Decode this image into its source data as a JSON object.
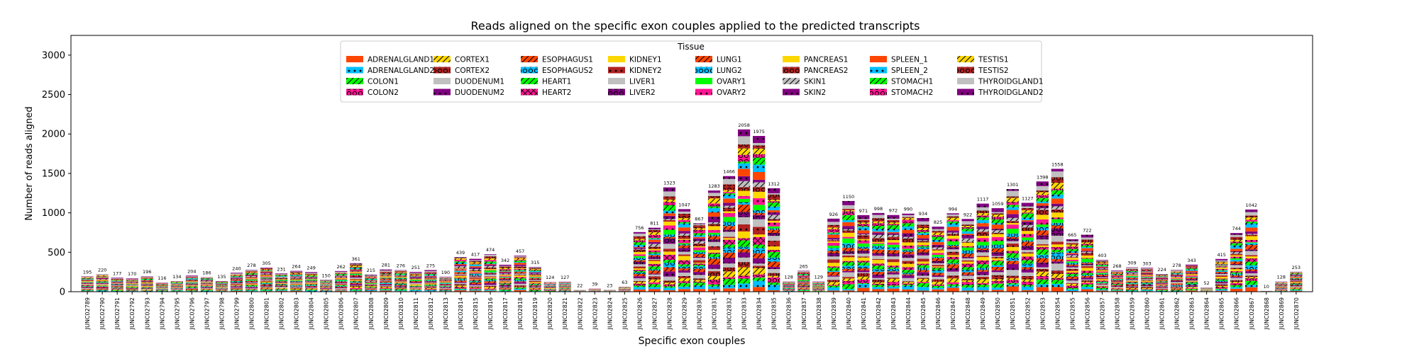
{
  "chart_data": {
    "type": "bar",
    "stacked": true,
    "title": "Reads aligned on the specific exon couples applied to the predicted transcripts",
    "xlabel": "Specific exon couples",
    "ylabel": "Number of reads aligned",
    "ylim": [
      0,
      3250
    ],
    "yticks": [
      0,
      500,
      1000,
      1500,
      2000,
      2500,
      3000
    ],
    "grid": false,
    "legend": {
      "title": "Tissue",
      "placement": "top-center",
      "ncol": 8
    },
    "categories": [
      "JUNC02789",
      "JUNC02790",
      "JUNC02791",
      "JUNC02792",
      "JUNC02793",
      "JUNC02794",
      "JUNC02795",
      "JUNC02796",
      "JUNC02797",
      "JUNC02798",
      "JUNC02799",
      "JUNC02800",
      "JUNC02801",
      "JUNC02802",
      "JUNC02803",
      "JUNC02804",
      "JUNC02805",
      "JUNC02806",
      "JUNC02807",
      "JUNC02808",
      "JUNC02809",
      "JUNC02810",
      "JUNC02811",
      "JUNC02812",
      "JUNC02813",
      "JUNC02814",
      "JUNC02815",
      "JUNC02816",
      "JUNC02817",
      "JUNC02818",
      "JUNC02819",
      "JUNC02820",
      "JUNC02821",
      "JUNC02822",
      "JUNC02823",
      "JUNC02824",
      "JUNC02825",
      "JUNC02826",
      "JUNC02827",
      "JUNC02828",
      "JUNC02829",
      "JUNC02830",
      "JUNC02831",
      "JUNC02832",
      "JUNC02833",
      "JUNC02834",
      "JUNC02835",
      "JUNC02836",
      "JUNC02837",
      "JUNC02838",
      "JUNC02839",
      "JUNC02840",
      "JUNC02841",
      "JUNC02842",
      "JUNC02843",
      "JUNC02844",
      "JUNC02845",
      "JUNC02846",
      "JUNC02847",
      "JUNC02848",
      "JUNC02849",
      "JUNC02850",
      "JUNC02851",
      "JUNC02852",
      "JUNC02853",
      "JUNC02854",
      "JUNC02855",
      "JUNC02856",
      "JUNC02857",
      "JUNC02858",
      "JUNC02859",
      "JUNC02860",
      "JUNC02861",
      "JUNC02862",
      "JUNC02863",
      "JUNC02864",
      "JUNC02865",
      "JUNC02866",
      "JUNC02867",
      "JUNC02868",
      "JUNC02869",
      "JUNC02870"
    ],
    "totals": [
      195,
      220,
      177,
      170,
      196,
      116,
      134,
      204,
      186,
      135,
      240,
      278,
      305,
      231,
      264,
      249,
      150,
      262,
      361,
      215,
      281,
      276,
      251,
      275,
      190,
      439,
      417,
      474,
      342,
      457,
      315,
      124,
      127,
      22,
      39,
      23,
      63,
      756,
      811,
      1323,
      1047,
      867,
      1283,
      1466,
      2058,
      1975,
      1312,
      128,
      265,
      129,
      926,
      1150,
      971,
      998,
      972,
      990,
      934,
      825,
      994,
      922,
      1117,
      1059,
      1301,
      1127,
      1398,
      1558,
      665,
      722,
      403,
      268,
      309,
      303,
      224,
      278,
      343,
      52,
      415,
      744,
      1042,
      10,
      128,
      253
    ],
    "series": [
      {
        "name": "ADRENALGLAND1",
        "color": "#FF4500",
        "hatch": "none"
      },
      {
        "name": "ADRENALGLAND2",
        "color": "#00BFFF",
        "hatch": "dot"
      },
      {
        "name": "COLON1",
        "color": "#00FF00",
        "hatch": "slash"
      },
      {
        "name": "COLON2",
        "color": "#FF1493",
        "hatch": "circle"
      },
      {
        "name": "CORTEX1",
        "color": "#FFD700",
        "hatch": "slash"
      },
      {
        "name": "CORTEX2",
        "color": "#B22222",
        "hatch": "circle"
      },
      {
        "name": "DUODENUM1",
        "color": "#C0C0C0",
        "hatch": "none"
      },
      {
        "name": "DUODENUM2",
        "color": "#800080",
        "hatch": "dot"
      },
      {
        "name": "ESOPHAGUS1",
        "color": "#FF4500",
        "hatch": "slash"
      },
      {
        "name": "ESOPHAGUS2",
        "color": "#00BFFF",
        "hatch": "circle"
      },
      {
        "name": "HEART1",
        "color": "#00FF00",
        "hatch": "slash"
      },
      {
        "name": "HEART2",
        "color": "#FF1493",
        "hatch": "cross"
      },
      {
        "name": "KIDNEY1",
        "color": "#FFD700",
        "hatch": "none"
      },
      {
        "name": "KIDNEY2",
        "color": "#B22222",
        "hatch": "dot"
      },
      {
        "name": "LIVER1",
        "color": "#C0C0C0",
        "hatch": "none"
      },
      {
        "name": "LIVER2",
        "color": "#800080",
        "hatch": "circle"
      },
      {
        "name": "LUNG1",
        "color": "#FF4500",
        "hatch": "slash"
      },
      {
        "name": "LUNG2",
        "color": "#00BFFF",
        "hatch": "circle"
      },
      {
        "name": "OVARY1",
        "color": "#00FF00",
        "hatch": "none"
      },
      {
        "name": "OVARY2",
        "color": "#FF1493",
        "hatch": "dot"
      },
      {
        "name": "PANCREAS1",
        "color": "#FFD700",
        "hatch": "none"
      },
      {
        "name": "PANCREAS2",
        "color": "#B22222",
        "hatch": "circle"
      },
      {
        "name": "SKIN1",
        "color": "#C0C0C0",
        "hatch": "slash"
      },
      {
        "name": "SKIN2",
        "color": "#800080",
        "hatch": "dot"
      },
      {
        "name": "SPLEEN_1",
        "color": "#FF4500",
        "hatch": "none"
      },
      {
        "name": "SPLEEN_2",
        "color": "#00BFFF",
        "hatch": "dot"
      },
      {
        "name": "STOMACH1",
        "color": "#00FF00",
        "hatch": "slash"
      },
      {
        "name": "STOMACH2",
        "color": "#FF1493",
        "hatch": "circle"
      },
      {
        "name": "TESTIS1",
        "color": "#FFD700",
        "hatch": "slash"
      },
      {
        "name": "TESTIS2",
        "color": "#B22222",
        "hatch": "circle"
      },
      {
        "name": "THYROIDGLAND1",
        "color": "#C0C0C0",
        "hatch": "none"
      },
      {
        "name": "THYROIDGLAND2",
        "color": "#800080",
        "hatch": "dot"
      }
    ]
  }
}
